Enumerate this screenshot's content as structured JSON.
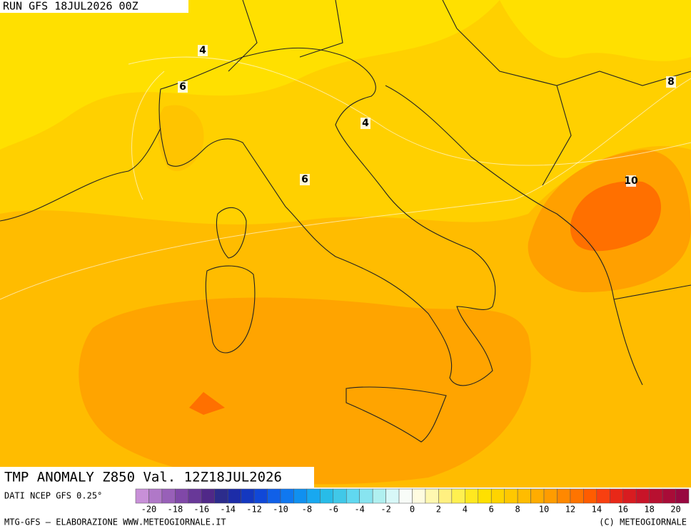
{
  "header": {
    "run": "RUN GFS 18JUL2026 00Z"
  },
  "map": {
    "contour_labels": [
      4,
      6,
      4,
      6,
      8,
      10
    ],
    "title": "TMP ANOMALY Z850 Val. 12Z18JUL2026",
    "source": "DATI NCEP GFS 0.25°"
  },
  "colorbar": {
    "range": [
      -21,
      21
    ],
    "ticks": [
      -20,
      -18,
      -16,
      -14,
      -12,
      -10,
      -8,
      -6,
      -4,
      -2,
      0,
      2,
      4,
      6,
      8,
      10,
      12,
      14,
      16,
      18,
      20
    ],
    "colors": [
      "#c890d8",
      "#b078c8",
      "#9860b8",
      "#8048a8",
      "#683898",
      "#502888",
      "#2c2c8c",
      "#1c2ca8",
      "#1438c0",
      "#1048d8",
      "#1060e8",
      "#1078f0",
      "#1090f0",
      "#18a8f0",
      "#28bce8",
      "#40c8e8",
      "#60d8f0",
      "#88e4f0",
      "#b0f0f0",
      "#d8f8f8",
      "#f8fcf8",
      "#fffce0",
      "#fff8b0",
      "#fff080",
      "#fff050",
      "#ffe820",
      "#ffe000",
      "#ffd400",
      "#ffc800",
      "#ffbc00",
      "#ffac00",
      "#ff9c00",
      "#ff8800",
      "#ff7400",
      "#ff5c00",
      "#f84010",
      "#e82818",
      "#d81c20",
      "#c81428",
      "#b81030",
      "#a80c38",
      "#980840"
    ]
  },
  "footer": {
    "left": "MTG-GFS — ELABORAZIONE WWW.METEOGIORNALE.IT",
    "right": "(C) METEOGIORNALE"
  }
}
